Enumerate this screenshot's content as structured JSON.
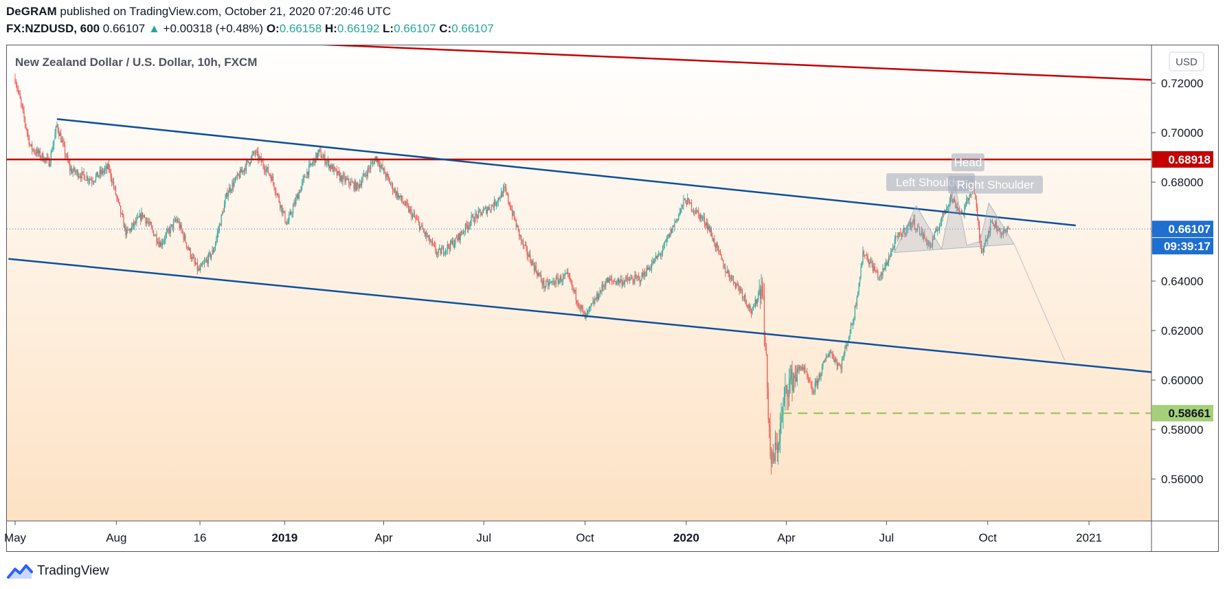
{
  "header": {
    "author": "DeGRAM",
    "published": " published on TradingView.com, October 21, 2020 07:20:46 UTC",
    "symbol": "FX:NZDUSD, 600",
    "last": "0.66107",
    "change_arrow": "▲",
    "change": "+0.00318 (+0.48%)",
    "o_label": "O:",
    "o": "0.66158",
    "h_label": "H:",
    "h": "0.66192",
    "l_label": "L:",
    "l": "0.66107",
    "c_label": "C:",
    "c": "0.66107"
  },
  "chart_data": {
    "type": "candlestick",
    "title": "New Zealand Dollar / U.S. Dollar, 10h, FXCM",
    "currency": "USD",
    "ylim": [
      0.546,
      0.733
    ],
    "y_ticks": [
      "0.72000",
      "0.70000",
      "0.68000",
      "0.66000",
      "0.64000",
      "0.62000",
      "0.60000",
      "0.58000",
      "0.56000"
    ],
    "x_ticks": [
      "May",
      "Aug",
      "16",
      "2019",
      "Apr",
      "Jul",
      "Oct",
      "2020",
      "Apr",
      "Jul",
      "Oct",
      "2021"
    ],
    "bold_x_ticks": [
      "2019",
      "2020"
    ],
    "price_path": [
      [
        "2018-05-01",
        0.722
      ],
      [
        "2018-05-15",
        0.694
      ],
      [
        "2018-06-01",
        0.688
      ],
      [
        "2018-06-08",
        0.703
      ],
      [
        "2018-06-20",
        0.685
      ],
      [
        "2018-07-10",
        0.681
      ],
      [
        "2018-07-25",
        0.686
      ],
      [
        "2018-08-10",
        0.659
      ],
      [
        "2018-08-25",
        0.667
      ],
      [
        "2018-09-10",
        0.655
      ],
      [
        "2018-09-25",
        0.665
      ],
      [
        "2018-10-10",
        0.648
      ],
      [
        "2018-10-15",
        0.644
      ],
      [
        "2018-10-28",
        0.652
      ],
      [
        "2018-11-10",
        0.676
      ],
      [
        "2018-12-05",
        0.692
      ],
      [
        "2018-12-20",
        0.682
      ],
      [
        "2019-01-03",
        0.663
      ],
      [
        "2019-01-20",
        0.683
      ],
      [
        "2019-02-01",
        0.692
      ],
      [
        "2019-02-20",
        0.682
      ],
      [
        "2019-03-08",
        0.678
      ],
      [
        "2019-03-25",
        0.69
      ],
      [
        "2019-04-10",
        0.677
      ],
      [
        "2019-04-30",
        0.665
      ],
      [
        "2019-05-20",
        0.651
      ],
      [
        "2019-06-05",
        0.656
      ],
      [
        "2019-06-20",
        0.665
      ],
      [
        "2019-07-10",
        0.671
      ],
      [
        "2019-07-20",
        0.677
      ],
      [
        "2019-08-05",
        0.655
      ],
      [
        "2019-08-25",
        0.638
      ],
      [
        "2019-09-15",
        0.642
      ],
      [
        "2019-10-01",
        0.625
      ],
      [
        "2019-10-20",
        0.64
      ],
      [
        "2019-11-05",
        0.64
      ],
      [
        "2019-11-20",
        0.641
      ],
      [
        "2019-12-10",
        0.652
      ],
      [
        "2019-12-31",
        0.673
      ],
      [
        "2020-01-20",
        0.663
      ],
      [
        "2020-02-05",
        0.645
      ],
      [
        "2020-02-20",
        0.636
      ],
      [
        "2020-03-01",
        0.627
      ],
      [
        "2020-03-10",
        0.64
      ],
      [
        "2020-03-18",
        0.565
      ],
      [
        "2020-03-24",
        0.574
      ],
      [
        "2020-04-01",
        0.597
      ],
      [
        "2020-04-15",
        0.606
      ],
      [
        "2020-04-25",
        0.595
      ],
      [
        "2020-05-10",
        0.612
      ],
      [
        "2020-05-20",
        0.605
      ],
      [
        "2020-06-01",
        0.625
      ],
      [
        "2020-06-10",
        0.652
      ],
      [
        "2020-06-25",
        0.641
      ],
      [
        "2020-07-10",
        0.657
      ],
      [
        "2020-07-25",
        0.664
      ],
      [
        "2020-08-10",
        0.654
      ],
      [
        "2020-08-28",
        0.674
      ],
      [
        "2020-09-08",
        0.667
      ],
      [
        "2020-09-18",
        0.679
      ],
      [
        "2020-09-25",
        0.652
      ],
      [
        "2020-10-05",
        0.664
      ],
      [
        "2020-10-15",
        0.659
      ],
      [
        "2020-10-21",
        0.661
      ]
    ],
    "levels": [
      {
        "name": "resistance",
        "price": 0.68918,
        "label": "0.68918",
        "color": "#c40000"
      },
      {
        "name": "support",
        "price": 0.58661,
        "label": "0.58661",
        "color": "#8bc34a",
        "dashed": true
      }
    ],
    "last_price": {
      "label": "0.66107",
      "countdown": "09:39:17",
      "color": "#1e6fcf"
    },
    "trendlines": [
      {
        "name": "channel-upper",
        "color": "#0b4f9c",
        "from": [
          "2018-06-08",
          0.7055
        ],
        "to": [
          "2020-12-20",
          0.6625
        ]
      },
      {
        "name": "channel-lower",
        "color": "#0b4f9c",
        "from": [
          "2018-04-25",
          0.649
        ],
        "to": [
          "2021-03-15",
          0.6025
        ]
      },
      {
        "name": "long-term-resistance",
        "color": "#c40000",
        "from": [
          "2018-11-24",
          0.737
        ],
        "to": [
          "2021-03-15",
          0.721
        ]
      }
    ],
    "pattern": {
      "name": "head-and-shoulders",
      "labels": [
        "Left Shoulder",
        "Head",
        "Right Shoulder"
      ],
      "projection": {
        "from": [
          "2020-10-25",
          0.655
        ],
        "to": [
          "2020-12-10",
          0.608
        ]
      }
    }
  },
  "footer": {
    "brand": "TradingView"
  }
}
